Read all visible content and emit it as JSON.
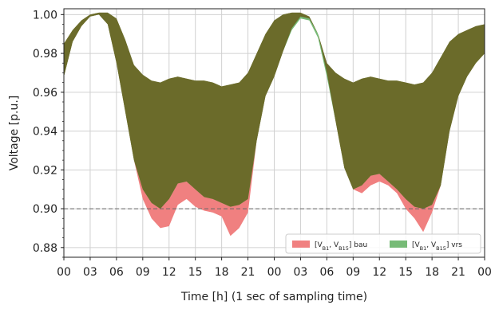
{
  "chart_data": {
    "type": "area",
    "title": "",
    "xlabel": "Time [h] (1 sec of sampling time)",
    "ylabel": "Voltage [p.u.]",
    "x_tick_labels": [
      "00",
      "03",
      "06",
      "09",
      "12",
      "15",
      "18",
      "21",
      "00",
      "03",
      "06",
      "09",
      "12",
      "15",
      "18",
      "21",
      "00"
    ],
    "x_tick_hours": [
      0,
      3,
      6,
      9,
      12,
      15,
      18,
      21,
      24,
      27,
      30,
      33,
      36,
      39,
      42,
      45,
      48
    ],
    "xlim": [
      0,
      48
    ],
    "ylim": [
      0.875,
      1.003
    ],
    "y_ticks": [
      0.88,
      0.9,
      0.92,
      0.94,
      0.96,
      0.98,
      1.0
    ],
    "y_tick_labels": [
      "0.88",
      "0.90",
      "0.92",
      "0.94",
      "0.96",
      "0.98",
      "1.00"
    ],
    "grid": true,
    "reference_line": {
      "y": 0.9,
      "style": "dashed"
    },
    "legend": {
      "placement": "lower-right",
      "entries": [
        {
          "main": "[V",
          "sub1": "B1",
          "mid": ", V",
          "sub2": "B15",
          "tail": "] bau",
          "color": "#f08080"
        },
        {
          "main": "[V",
          "sub1": "B1",
          "mid": ", V",
          "sub2": "B15",
          "tail": "] vrs",
          "color": "#77bb77"
        }
      ]
    },
    "overlap_color": "#6b6b2a",
    "series": [
      {
        "name": "[VB1, VB15] bau",
        "color": "#f08080",
        "x": [
          0,
          1,
          2,
          3,
          4,
          5,
          6,
          7,
          8,
          9,
          10,
          11,
          12,
          13,
          14,
          15,
          16,
          17,
          18,
          19,
          20,
          21,
          22,
          23,
          24,
          25,
          26,
          27,
          28,
          29,
          30,
          31,
          32,
          33,
          34,
          35,
          36,
          37,
          38,
          39,
          40,
          41,
          42,
          43,
          44,
          45,
          46,
          47,
          48
        ],
        "upper": [
          0.985,
          0.992,
          0.997,
          1.0,
          1.001,
          1.001,
          0.998,
          0.987,
          0.974,
          0.969,
          0.966,
          0.965,
          0.967,
          0.968,
          0.967,
          0.966,
          0.966,
          0.965,
          0.963,
          0.964,
          0.965,
          0.97,
          0.98,
          0.99,
          0.997,
          1.0,
          1.001,
          1.001,
          0.999,
          0.99,
          0.975,
          0.97,
          0.967,
          0.965,
          0.967,
          0.968,
          0.967,
          0.966,
          0.966,
          0.965,
          0.964,
          0.965,
          0.97,
          0.978,
          0.986,
          0.99,
          0.992,
          0.994,
          0.995
        ],
        "lower": [
          0.968,
          0.986,
          0.994,
          0.999,
          1.0,
          0.995,
          0.975,
          0.95,
          0.925,
          0.905,
          0.895,
          0.89,
          0.891,
          0.902,
          0.905,
          0.901,
          0.899,
          0.898,
          0.896,
          0.886,
          0.89,
          0.898,
          0.935,
          0.958,
          0.968,
          0.981,
          0.993,
          0.999,
          0.998,
          0.99,
          0.97,
          0.945,
          0.921,
          0.91,
          0.908,
          0.912,
          0.914,
          0.912,
          0.908,
          0.9,
          0.895,
          0.888,
          0.898,
          0.912,
          0.94,
          0.958,
          0.968,
          0.975,
          0.98
        ]
      },
      {
        "name": "[VB1, VB15] vrs",
        "color": "#77bb77",
        "x": [
          0,
          1,
          2,
          3,
          4,
          5,
          6,
          7,
          8,
          9,
          10,
          11,
          12,
          13,
          14,
          15,
          16,
          17,
          18,
          19,
          20,
          21,
          22,
          23,
          24,
          25,
          26,
          27,
          28,
          29,
          30,
          31,
          32,
          33,
          34,
          35,
          36,
          37,
          38,
          39,
          40,
          41,
          42,
          43,
          44,
          45,
          46,
          47,
          48
        ],
        "upper": [
          0.985,
          0.992,
          0.997,
          1.0,
          1.001,
          1.001,
          0.998,
          0.987,
          0.974,
          0.969,
          0.966,
          0.965,
          0.967,
          0.968,
          0.967,
          0.966,
          0.966,
          0.965,
          0.963,
          0.964,
          0.965,
          0.97,
          0.98,
          0.99,
          0.997,
          1.0,
          1.001,
          1.001,
          0.999,
          0.99,
          0.975,
          0.97,
          0.967,
          0.965,
          0.967,
          0.968,
          0.967,
          0.966,
          0.966,
          0.965,
          0.964,
          0.965,
          0.97,
          0.978,
          0.986,
          0.99,
          0.992,
          0.994,
          0.995
        ],
        "lower": [
          0.968,
          0.986,
          0.994,
          0.999,
          1.0,
          0.995,
          0.975,
          0.95,
          0.925,
          0.91,
          0.903,
          0.9,
          0.905,
          0.913,
          0.914,
          0.91,
          0.906,
          0.905,
          0.903,
          0.901,
          0.902,
          0.905,
          0.935,
          0.958,
          0.968,
          0.981,
          0.992,
          0.998,
          0.997,
          0.988,
          0.968,
          0.945,
          0.921,
          0.91,
          0.912,
          0.917,
          0.918,
          0.914,
          0.91,
          0.905,
          0.901,
          0.9,
          0.902,
          0.912,
          0.94,
          0.958,
          0.968,
          0.975,
          0.98
        ]
      }
    ]
  }
}
